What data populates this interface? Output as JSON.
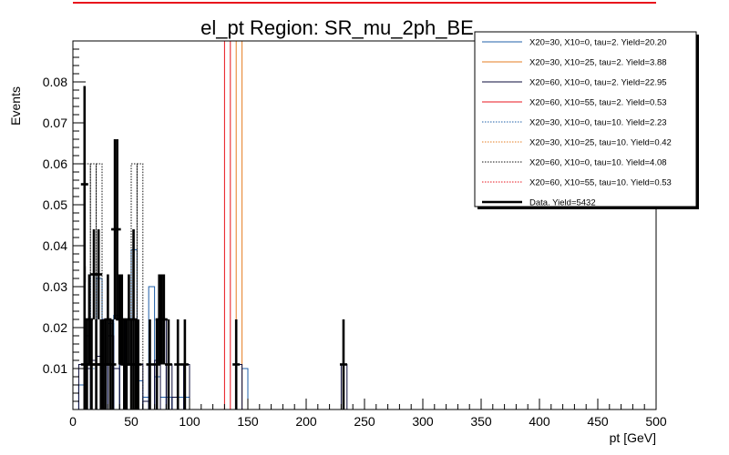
{
  "chart_data": {
    "type": "histogram",
    "title": "el_pt Region: SR_mu_2ph_BE",
    "xlabel": "pt [GeV]",
    "ylabel": "Events",
    "xlim": [
      0,
      500
    ],
    "ylim": [
      0,
      0.09
    ],
    "bin_width": 5,
    "x_ticks": [
      0,
      50,
      100,
      150,
      200,
      250,
      300,
      350,
      400,
      450,
      500
    ],
    "y_ticks": [
      0.01,
      0.02,
      0.03,
      0.04,
      0.05,
      0.06,
      0.07,
      0.08
    ],
    "x_tick_labels": [
      "0",
      "50",
      "100",
      "150",
      "200",
      "250",
      "300",
      "350",
      "400",
      "450",
      "500"
    ],
    "y_tick_labels": [
      "0.01",
      "0.02",
      "0.03",
      "0.04",
      "0.05",
      "0.06",
      "0.07",
      "0.08"
    ],
    "legend_position": "top-right",
    "series": [
      {
        "name": "X20=30, X10=0, tau=2. Yield=20.20",
        "color": "#1f5fa8",
        "style": "solid",
        "bins": [
          [
            5,
            10,
            0.006
          ],
          [
            10,
            15,
            0.018
          ],
          [
            15,
            20,
            0.033
          ],
          [
            20,
            25,
            0.032
          ],
          [
            25,
            30,
            0.011
          ],
          [
            30,
            35,
            0.021
          ],
          [
            35,
            40,
            0.023
          ],
          [
            40,
            45,
            0.022
          ],
          [
            45,
            50,
            0.011
          ],
          [
            50,
            55,
            0.039
          ],
          [
            55,
            60,
            0.007
          ],
          [
            60,
            65,
            0.003
          ],
          [
            65,
            70,
            0.03
          ],
          [
            70,
            75,
            0.008
          ],
          [
            75,
            80,
            0.003
          ],
          [
            80,
            85,
            0.003
          ],
          [
            85,
            90,
            0.003
          ],
          [
            90,
            95,
            0.003
          ],
          [
            95,
            100,
            0.003
          ],
          [
            145,
            150,
            0.01
          ]
        ]
      },
      {
        "name": "X20=30, X10=25, tau=2. Yield=3.88",
        "color": "#e67e22",
        "style": "solid",
        "bins": [
          [
            140,
            145,
            0.2
          ]
        ]
      },
      {
        "name": "X20=60, X10=0, tau=2. Yield=22.95",
        "color": "#0b0b3b",
        "style": "solid",
        "bins": [
          [
            5,
            10,
            0.011
          ],
          [
            10,
            15,
            0.01
          ],
          [
            15,
            20,
            0.012
          ],
          [
            20,
            25,
            0.013
          ],
          [
            25,
            30,
            0.022
          ],
          [
            30,
            35,
            0.018
          ],
          [
            35,
            40,
            0.01
          ],
          [
            40,
            45,
            0.011
          ],
          [
            45,
            50,
            0.022
          ],
          [
            50,
            55,
            0.022
          ],
          [
            55,
            60,
            0.011
          ],
          [
            60,
            65,
            0.002
          ],
          [
            65,
            70,
            0.011
          ],
          [
            70,
            75,
            0.012
          ],
          [
            75,
            80,
            0.022
          ],
          [
            80,
            85,
            0.011
          ],
          [
            85,
            90,
            0.003
          ],
          [
            90,
            95,
            0.011
          ],
          [
            95,
            100,
            0.011
          ],
          [
            140,
            145,
            0.011
          ],
          [
            230,
            235,
            0.011
          ]
        ]
      },
      {
        "name": "X20=60, X10=55, tau=2. Yield=0.53",
        "color": "#e8141c",
        "style": "solid",
        "bins": [
          [
            130,
            135,
            0.2
          ]
        ]
      },
      {
        "name": "X20=30, X10=0, tau=10. Yield=2.23",
        "color": "#1f5fa8",
        "style": "dotted",
        "bins": [
          [
            10,
            15,
            0.0
          ],
          [
            15,
            20,
            0.01
          ]
        ]
      },
      {
        "name": "X20=30, X10=25, tau=10. Yield=0.42",
        "color": "#e67e22",
        "style": "dotted",
        "bins": []
      },
      {
        "name": "X20=60, X10=0, tau=10. Yield=4.08",
        "color": "#111111",
        "style": "dotted",
        "bins": [
          [
            10,
            15,
            0.06
          ],
          [
            15,
            20,
            0.06
          ],
          [
            20,
            25,
            0.06
          ],
          [
            25,
            30,
            0.0
          ],
          [
            50,
            55,
            0.06
          ],
          [
            55,
            60,
            0.06
          ]
        ]
      },
      {
        "name": "X20=60, X10=55, tau=10. Yield=0.53",
        "color": "#e8141c",
        "style": "dotted",
        "bins": []
      },
      {
        "name": "Data. Yield=5432",
        "color": "#000000",
        "style": "data",
        "points": [
          [
            10,
            0.055
          ],
          [
            10,
            0.011
          ],
          [
            12,
            0.011
          ],
          [
            14,
            0.022
          ],
          [
            16,
            0.011
          ],
          [
            18,
            0.033
          ],
          [
            20,
            0.011
          ],
          [
            22,
            0.033
          ],
          [
            24,
            0.011
          ],
          [
            26,
            0.011
          ],
          [
            28,
            0.011
          ],
          [
            30,
            0.022
          ],
          [
            32,
            0.011
          ],
          [
            34,
            0.011
          ],
          [
            36,
            0.044
          ],
          [
            38,
            0.044
          ],
          [
            40,
            0.022
          ],
          [
            42,
            0.022
          ],
          [
            44,
            0.011
          ],
          [
            46,
            0.011
          ],
          [
            48,
            0.022
          ],
          [
            50,
            0.011
          ],
          [
            52,
            0.022
          ],
          [
            54,
            0.011
          ],
          [
            56,
            0.011
          ],
          [
            66,
            0.011
          ],
          [
            72,
            0.011
          ],
          [
            74,
            0.022
          ],
          [
            76,
            0.022
          ],
          [
            78,
            0.022
          ],
          [
            82,
            0.011
          ],
          [
            90,
            0.011
          ],
          [
            96,
            0.011
          ],
          [
            140,
            0.011
          ],
          [
            232,
            0.011
          ]
        ],
        "errors": [
          [
            10,
            0.024
          ],
          [
            12,
            0.011
          ],
          [
            14,
            0.011
          ],
          [
            18,
            0.011
          ],
          [
            22,
            0.011
          ],
          [
            36,
            0.022
          ],
          [
            38,
            0.022
          ],
          [
            52,
            0.022
          ],
          [
            74,
            0.011
          ],
          [
            76,
            0.011
          ],
          [
            78,
            0.011
          ]
        ]
      }
    ]
  }
}
